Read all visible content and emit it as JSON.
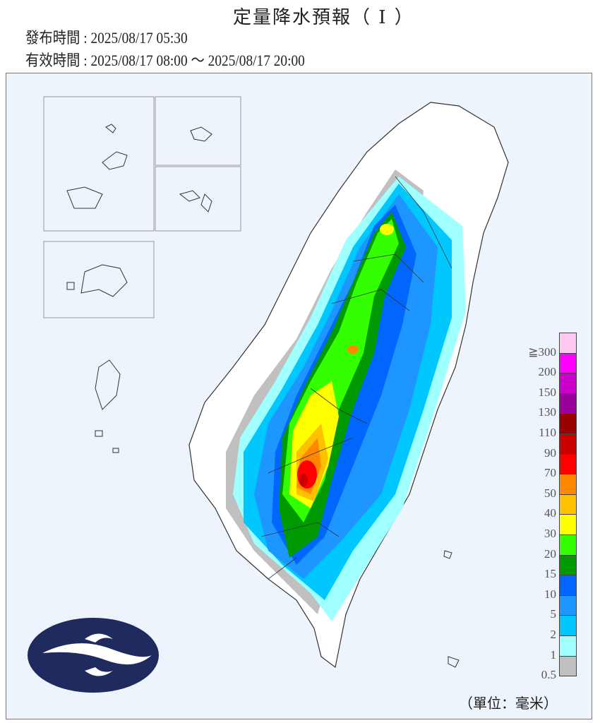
{
  "header": {
    "title": "定量降水預報（ I ）",
    "issue_time": "發布時間 : 2025/08/17 05:30",
    "valid_time": "有效時間 : 2025/08/17 08:00 ～ 2025/08/17 20:00"
  },
  "legend": {
    "labels": [
      "≧300",
      "200",
      "150",
      "130",
      "110",
      "90",
      "70",
      "50",
      "40",
      "30",
      "20",
      "15",
      "10",
      "5",
      "2",
      "1",
      "0.5"
    ],
    "colors": [
      "#ffc8f0",
      "#ff00ff",
      "#cc00cc",
      "#990099",
      "#990000",
      "#cc0000",
      "#ff0000",
      "#ff8800",
      "#ffc000",
      "#ffff00",
      "#33ff00",
      "#009900",
      "#0066ff",
      "#1e96ff",
      "#00c8ff",
      "#a0ffff",
      "#c0c0c0"
    ],
    "unit": "（單位：毫米）"
  },
  "logo": {
    "color": "#1f2a5e"
  }
}
